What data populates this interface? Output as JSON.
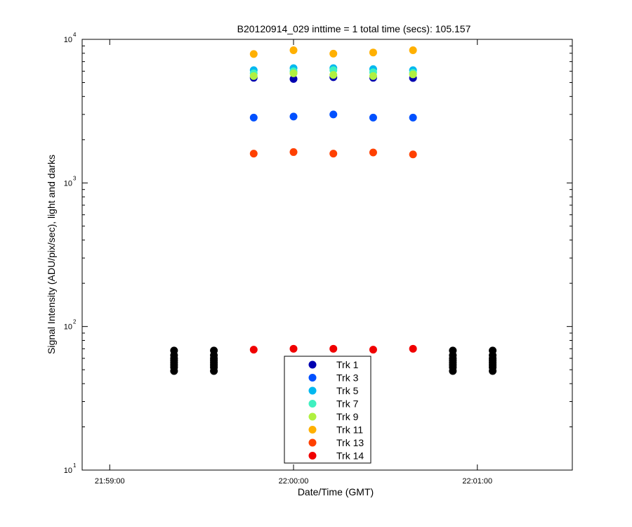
{
  "chart_data": {
    "type": "scatter",
    "title": "B20120914_029 inttime = 1 total time (secs): 105.157",
    "xlabel": "Date/Time (GMT)",
    "ylabel": "Signal Intensity (ADU/pix/sec), light and darks",
    "y_scale": "log",
    "ylim": [
      10,
      10000
    ],
    "xlim": [
      "21:58:51",
      "22:01:31"
    ],
    "x_ticks": [
      "21:59:00",
      "22:00:00",
      "22:01:00"
    ],
    "y_ticks": [
      {
        "base": "10",
        "exp": "1"
      },
      {
        "base": "10",
        "exp": "2"
      },
      {
        "base": "10",
        "exp": "3"
      },
      {
        "base": "10",
        "exp": "4"
      }
    ],
    "legend_position": "bottom-center",
    "series": [
      {
        "name": "Trk 1",
        "color": "#0000b0",
        "points": [
          [
            "21:59:47",
            5400
          ],
          [
            "22:00:00",
            5300
          ],
          [
            "22:00:13",
            5450
          ],
          [
            "22:00:26",
            5400
          ],
          [
            "22:00:39",
            5380
          ]
        ]
      },
      {
        "name": "Trk 3",
        "color": "#0050ff",
        "points": [
          [
            "21:59:47",
            2850
          ],
          [
            "22:00:00",
            2900
          ],
          [
            "22:00:13",
            3000
          ],
          [
            "22:00:26",
            2850
          ],
          [
            "22:00:39",
            2850
          ]
        ]
      },
      {
        "name": "Trk 5",
        "color": "#00b8f0",
        "points": [
          [
            "21:59:47",
            6100
          ],
          [
            "22:00:00",
            6300
          ],
          [
            "22:00:13",
            6300
          ],
          [
            "22:00:26",
            6200
          ],
          [
            "22:00:39",
            6100
          ]
        ]
      },
      {
        "name": "Trk 7",
        "color": "#40f0c0",
        "points": [
          [
            "21:59:47",
            5800
          ],
          [
            "22:00:00",
            6000
          ],
          [
            "22:00:13",
            6100
          ],
          [
            "22:00:26",
            5900
          ],
          [
            "22:00:39",
            5850
          ]
        ]
      },
      {
        "name": "Trk 9",
        "color": "#b0f040",
        "points": [
          [
            "21:59:47",
            5550
          ],
          [
            "22:00:00",
            5800
          ],
          [
            "22:00:13",
            5650
          ],
          [
            "22:00:26",
            5550
          ],
          [
            "22:00:39",
            5700
          ]
        ]
      },
      {
        "name": "Trk 11",
        "color": "#ffb000",
        "points": [
          [
            "21:59:47",
            7900
          ],
          [
            "22:00:00",
            8400
          ],
          [
            "22:00:13",
            7950
          ],
          [
            "22:00:26",
            8100
          ],
          [
            "22:00:39",
            8400
          ]
        ]
      },
      {
        "name": "Trk 13",
        "color": "#ff4000",
        "points": [
          [
            "21:59:47",
            1600
          ],
          [
            "22:00:00",
            1640
          ],
          [
            "22:00:13",
            1600
          ],
          [
            "22:00:26",
            1630
          ],
          [
            "22:00:39",
            1580
          ]
        ]
      },
      {
        "name": "Trk 14",
        "color": "#f00000",
        "points": [
          [
            "21:59:47",
            69
          ],
          [
            "22:00:00",
            70
          ],
          [
            "22:00:13",
            70
          ],
          [
            "22:00:26",
            69
          ],
          [
            "22:00:39",
            70
          ]
        ]
      }
    ],
    "dark_points": {
      "color": "#000000",
      "times": [
        "21:59:21",
        "21:59:34",
        "22:00:52",
        "22:01:05"
      ],
      "values": [
        68,
        63,
        60,
        58,
        56,
        54,
        52,
        49
      ]
    }
  }
}
